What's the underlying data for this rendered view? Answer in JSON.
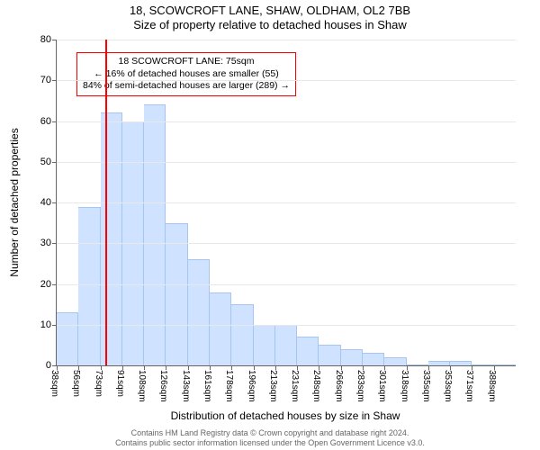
{
  "title_line1": "18, SCOWCROFT LANE, SHAW, OLDHAM, OL2 7BB",
  "title_line2": "Size of property relative to detached houses in Shaw",
  "title_fontsize": 13,
  "ylabel": "Number of detached properties",
  "xlabel": "Distribution of detached houses by size in Shaw",
  "axis_label_fontsize": 12,
  "tick_fontsize": 11,
  "footer_line1": "Contains HM Land Registry data © Crown copyright and database right 2024.",
  "footer_line2": "Contains public sector information licensed under the Open Government Licence v3.0.",
  "chart": {
    "type": "histogram",
    "background_color": "#ffffff",
    "axis_color": "#666666",
    "grid_color": "#e8e8e8",
    "bar_fill": "#cfe2ff",
    "bar_border": "#a8c5f0",
    "ylim": [
      0,
      80
    ],
    "ytick_step": 10,
    "yticks": [
      0,
      10,
      20,
      30,
      40,
      50,
      60,
      70,
      80
    ],
    "xtick_labels": [
      "38sqm",
      "56sqm",
      "73sqm",
      "91sqm",
      "108sqm",
      "126sqm",
      "143sqm",
      "161sqm",
      "178sqm",
      "196sqm",
      "213sqm",
      "231sqm",
      "248sqm",
      "266sqm",
      "283sqm",
      "301sqm",
      "318sqm",
      "335sqm",
      "353sqm",
      "371sqm",
      "388sqm"
    ],
    "bars": [
      13,
      39,
      62,
      60,
      64,
      35,
      26,
      18,
      15,
      10,
      10,
      7,
      5,
      4,
      3,
      2,
      0,
      1,
      1,
      0,
      0
    ],
    "marker_line": {
      "color": "#ff0000",
      "fraction": 0.106
    },
    "annotation": {
      "line1": "18 SCOWCROFT LANE: 75sqm",
      "line2": "← 16% of detached houses are smaller (55)",
      "line3": "84% of semi-detached houses are larger (289) →",
      "border_color": "#ff0000",
      "fontsize": 10.5
    }
  }
}
